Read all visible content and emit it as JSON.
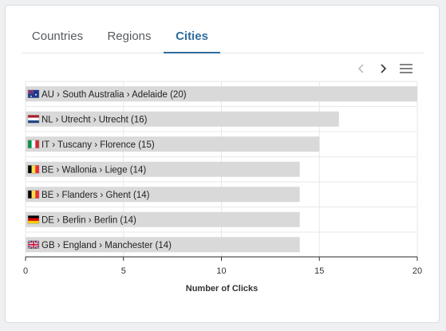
{
  "tabs": [
    {
      "label": "Countries",
      "active": false
    },
    {
      "label": "Regions",
      "active": false
    },
    {
      "label": "Cities",
      "active": true
    }
  ],
  "toolbar": {
    "prev_icon": "chevron-left-icon",
    "next_icon": "chevron-right-icon",
    "menu_icon": "hamburger-menu-icon"
  },
  "colors": {
    "accent": "#2f6d9e",
    "bar": "#d9d9d9"
  },
  "chart_data": {
    "type": "bar",
    "orientation": "horizontal",
    "categories": [
      {
        "flag": "AU",
        "label": "AU › South Australia › Adelaide (20)"
      },
      {
        "flag": "NL",
        "label": "NL › Utrecht › Utrecht (16)"
      },
      {
        "flag": "IT",
        "label": "IT › Tuscany › Florence (15)"
      },
      {
        "flag": "BE",
        "label": "BE › Wallonia › Liege (14)"
      },
      {
        "flag": "BE",
        "label": "BE › Flanders › Ghent (14)"
      },
      {
        "flag": "DE",
        "label": "DE › Berlin › Berlin (14)"
      },
      {
        "flag": "GB",
        "label": "GB › England › Manchester (14)"
      }
    ],
    "values": [
      20,
      16,
      15,
      14,
      14,
      14,
      14
    ],
    "xlabel": "Number of Clicks",
    "xlim": [
      0,
      20
    ],
    "xticks": [
      0,
      5,
      10,
      15,
      20
    ],
    "grid": true
  }
}
